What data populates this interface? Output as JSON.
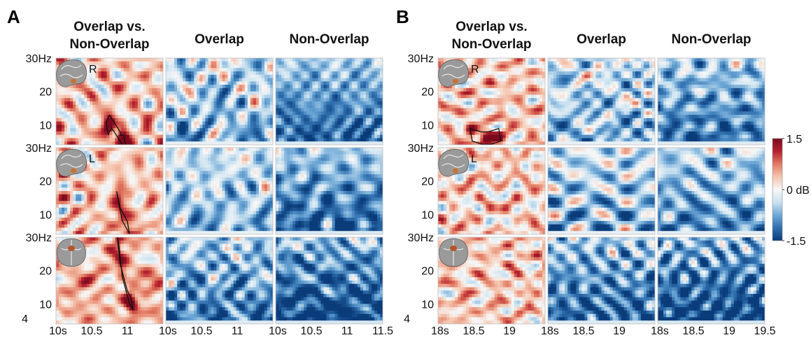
{
  "figure": {
    "panels": [
      {
        "letter": "A",
        "column_titles": [
          "Overlap vs.\nNon-Overlap",
          "Overlap",
          "Non-Overlap"
        ],
        "x_ticks": [
          {
            "value": 10,
            "label": "10s"
          },
          {
            "value": 10.5,
            "label": "10.5"
          },
          {
            "value": 11,
            "label": "11"
          },
          {
            "value": 11.5,
            "label": "11.5"
          }
        ],
        "xlim": [
          10,
          11.5
        ]
      },
      {
        "letter": "B",
        "column_titles": [
          "Overlap vs.\nNon-Overlap",
          "Overlap",
          "Non-Overlap"
        ],
        "x_ticks": [
          {
            "value": 18,
            "label": "18s"
          },
          {
            "value": 18.5,
            "label": "18.5"
          },
          {
            "value": 19,
            "label": "19"
          },
          {
            "value": 19.5,
            "label": "19.5"
          }
        ],
        "xlim": [
          18,
          19.5
        ]
      }
    ],
    "rows": [
      {
        "brain_label": "R",
        "brain_view": "sagittal"
      },
      {
        "brain_label": "L",
        "brain_view": "sagittal"
      },
      {
        "brain_label": "",
        "brain_view": "coronal"
      }
    ],
    "y_ticks": [
      {
        "value": 30,
        "label": "30Hz"
      },
      {
        "value": 20,
        "label": "20"
      },
      {
        "value": 10,
        "label": "10"
      }
    ],
    "y_tick_bottom": {
      "value": 4,
      "label": "4"
    },
    "colorbar": {
      "min": -1.5,
      "max": 1.5,
      "ticks": [
        {
          "value": 1.5,
          "label": "1.5"
        },
        {
          "value": 0,
          "label": "0 dB"
        },
        {
          "value": -1.5,
          "label": "-1.5"
        }
      ],
      "colors": [
        "#0b3c7a",
        "#2f6fae",
        "#6fa8d6",
        "#c9e1f0",
        "#f7f7f7",
        "#f5c4ae",
        "#e27b63",
        "#b5212e",
        "#7a0a1e"
      ]
    }
  },
  "chart_data": {
    "type": "heatmap",
    "yunit": "Hz",
    "xunit": "s",
    "ylim": [
      4,
      30
    ],
    "clim": [
      -1.5,
      1.5
    ],
    "panels": [
      {
        "letter": "A",
        "xlim": [
          10,
          11.5
        ],
        "rows": [
          {
            "brain_label": "R",
            "maps": [
              {
                "column": "Overlap vs. Non-Overlap",
                "mean_db": 0.3,
                "significant_cluster": {
                  "t": [
                    10.7,
                    10.75,
                    10.9,
                    10.9,
                    10.95
                  ],
                  "hz": [
                    9,
                    11,
                    6,
                    5,
                    5
                  ]
                }
              },
              {
                "column": "Overlap",
                "mean_db": -0.5
              },
              {
                "column": "Non-Overlap",
                "mean_db": -0.9
              }
            ]
          },
          {
            "brain_label": "L",
            "maps": [
              {
                "column": "Overlap vs. Non-Overlap",
                "mean_db": 0.3,
                "significant_cluster": {
                  "t": [
                    10.85,
                    10.9,
                    11.0
                  ],
                  "hz": [
                    15,
                    10,
                    6
                  ]
                }
              },
              {
                "column": "Overlap",
                "mean_db": -0.5
              },
              {
                "column": "Non-Overlap",
                "mean_db": -0.9
              }
            ]
          },
          {
            "brain_label": "",
            "maps": [
              {
                "column": "Overlap vs. Non-Overlap",
                "mean_db": 0.4,
                "significant_cluster": {
                  "t": [
                    10.85,
                    10.9,
                    11.0,
                    11.05
                  ],
                  "hz": [
                    30,
                    20,
                    12,
                    10
                  ]
                }
              },
              {
                "column": "Overlap",
                "mean_db": -0.8
              },
              {
                "column": "Non-Overlap",
                "mean_db": -1.1
              }
            ]
          }
        ]
      },
      {
        "letter": "B",
        "xlim": [
          18,
          19.5
        ],
        "rows": [
          {
            "brain_label": "R",
            "maps": [
              {
                "column": "Overlap vs. Non-Overlap",
                "mean_db": 0.3,
                "significant_cluster": {
                  "t": [
                    18.45,
                    18.6,
                    18.7,
                    18.85
                  ],
                  "hz": [
                    7,
                    6,
                    6,
                    7
                  ]
                }
              },
              {
                "column": "Overlap",
                "mean_db": -0.5
              },
              {
                "column": "Non-Overlap",
                "mean_db": -0.8
              }
            ]
          },
          {
            "brain_label": "L",
            "maps": [
              {
                "column": "Overlap vs. Non-Overlap",
                "mean_db": 0.25
              },
              {
                "column": "Overlap",
                "mean_db": -0.5
              },
              {
                "column": "Non-Overlap",
                "mean_db": -0.7
              }
            ]
          },
          {
            "brain_label": "",
            "maps": [
              {
                "column": "Overlap vs. Non-Overlap",
                "mean_db": 0.3
              },
              {
                "column": "Overlap",
                "mean_db": -0.9
              },
              {
                "column": "Non-Overlap",
                "mean_db": -1.1
              }
            ]
          }
        ]
      }
    ]
  }
}
